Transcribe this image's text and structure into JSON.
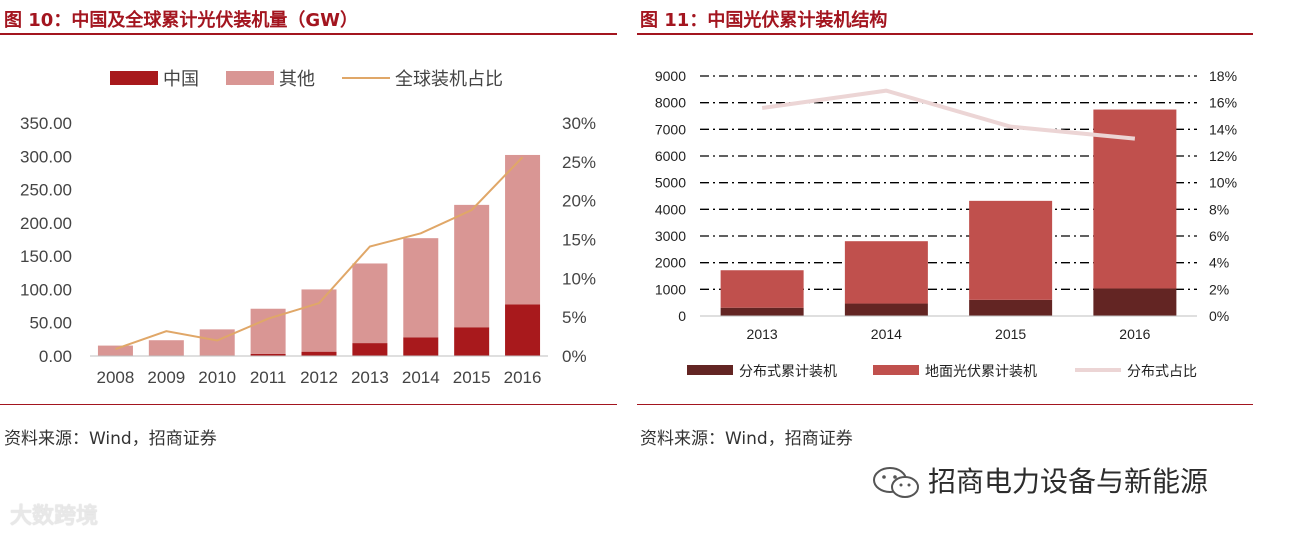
{
  "left_panel": {
    "title": "图 10：中国及全球累计光伏装机量（GW）",
    "source": "资料来源：Wind，招商证券"
  },
  "right_panel": {
    "title": "图 11：中国光伏累计装机结构",
    "source": "资料来源：Wind，招商证券"
  },
  "watermarks": {
    "right": "招商电力设备与新能源",
    "left": "大数跨境"
  },
  "colors": {
    "brand_red": "#a3151f",
    "china": "#a8191c",
    "other": "#d99694",
    "global_share_line": "#e0a768",
    "distributed": "#632523",
    "ground": "#c0504d",
    "distributed_share_line": "#ecd5d5"
  },
  "icons": [
    "wechat-icon"
  ],
  "chart_data": [
    {
      "type": "bar",
      "stacked": true,
      "categories": [
        "2008",
        "2009",
        "2010",
        "2011",
        "2012",
        "2013",
        "2014",
        "2015",
        "2016"
      ],
      "series": [
        {
          "name": "中国",
          "values": [
            0.14,
            0.3,
            0.8,
            3.3,
            6.5,
            19.4,
            28.1,
            43.2,
            77.4
          ]
        },
        {
          "name": "其他",
          "values": [
            15.5,
            23.4,
            39.2,
            67.7,
            93.5,
            119.6,
            148.9,
            183.8,
            224.6
          ]
        },
        {
          "name": "全球装机占比",
          "type": "line",
          "axis": "right",
          "values": [
            0.009,
            0.032,
            0.02,
            0.048,
            0.068,
            0.141,
            0.158,
            0.188,
            0.256
          ]
        }
      ],
      "ylim": [
        0,
        350
      ],
      "yticks": [
        "0.00",
        "50.00",
        "100.00",
        "150.00",
        "200.00",
        "250.00",
        "300.00",
        "350.00"
      ],
      "y2lim": [
        0,
        0.3
      ],
      "y2ticks": [
        "0%",
        "5%",
        "10%",
        "15%",
        "20%",
        "25%",
        "30%"
      ],
      "legend": [
        "中国",
        "其他",
        "全球装机占比"
      ],
      "legend_position": "top",
      "grid": false
    },
    {
      "type": "bar",
      "stacked": true,
      "categories": [
        "2013",
        "2014",
        "2015",
        "2016"
      ],
      "series": [
        {
          "name": "分布式累计装机",
          "values": [
            310,
            467,
            606,
            1032
          ]
        },
        {
          "name": "地面光伏累计装机",
          "values": [
            1406,
            2338,
            3712,
            6710
          ]
        },
        {
          "name": "分布式占比",
          "type": "line",
          "axis": "right",
          "values": [
            0.156,
            0.169,
            0.142,
            0.133
          ]
        }
      ],
      "ylim": [
        0,
        9000
      ],
      "yticks": [
        "0",
        "1000",
        "2000",
        "3000",
        "4000",
        "5000",
        "6000",
        "7000",
        "8000",
        "9000"
      ],
      "y2lim": [
        0,
        0.18
      ],
      "y2ticks": [
        "0%",
        "2%",
        "4%",
        "6%",
        "8%",
        "10%",
        "12%",
        "14%",
        "16%",
        "18%"
      ],
      "legend": [
        "分布式累计装机",
        "地面光伏累计装机",
        "分布式占比"
      ],
      "legend_position": "bottom",
      "grid": true
    }
  ]
}
